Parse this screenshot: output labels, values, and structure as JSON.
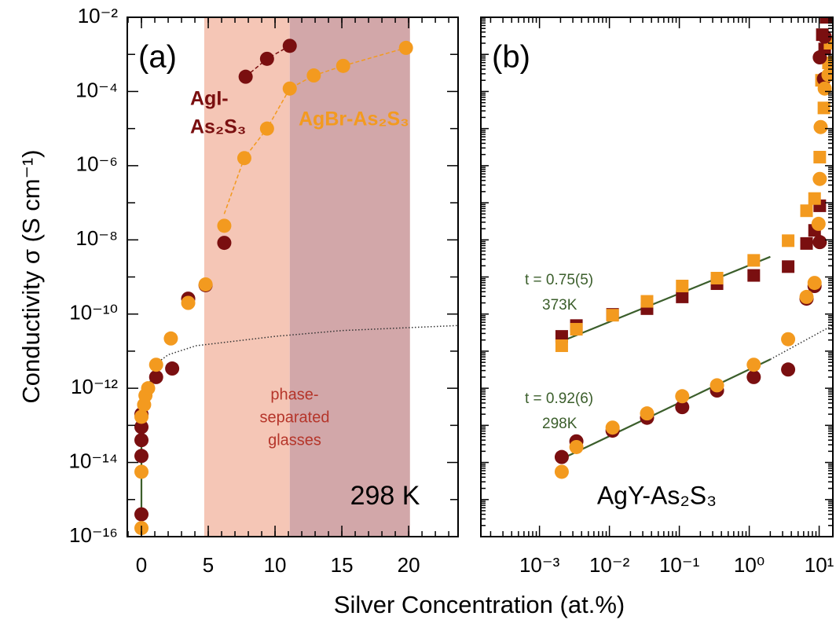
{
  "ylabel": "Conductivity σ (S cm⁻¹)",
  "xlabel": "Silver Concentration (at.%)",
  "chart_data": [
    {
      "type": "scatter",
      "xlim": [
        -1.06,
        23.7
      ],
      "ylim": [
        1e-16,
        0.01
      ],
      "ylog": true,
      "xlog": false,
      "xticks": [
        0,
        5,
        10,
        15,
        20
      ],
      "xminor_step": 1,
      "yticks": [
        {
          "value": 0.01,
          "label": "10⁻²"
        },
        {
          "value": 0.0001,
          "label": "10⁻⁴"
        },
        {
          "value": 1e-06,
          "label": "10⁻⁶"
        },
        {
          "value": 1e-08,
          "label": "10⁻⁸"
        },
        {
          "value": 1e-10,
          "label": "10⁻¹⁰"
        },
        {
          "value": 1e-12,
          "label": "10⁻¹²"
        },
        {
          "value": 1e-14,
          "label": "10⁻¹⁴"
        },
        {
          "value": 1e-16,
          "label": "10⁻¹⁶"
        }
      ],
      "yticks_unlabeled": [
        0.001,
        1e-05,
        1e-07,
        1e-09,
        1e-11,
        1e-13,
        1e-15
      ],
      "regions": [
        {
          "x0": 4.7,
          "x1": 11.1,
          "color": "#f5c6b6"
        },
        {
          "x0": 11.1,
          "x1": 20.1,
          "color": "#d2a7a9"
        }
      ],
      "series": [
        {
          "color": "#7a0f10",
          "marker": "circle",
          "x": [
            0,
            0,
            0,
            0,
            0,
            1.1,
            2.3,
            3.5,
            4.8,
            6.2,
            7.8,
            9.4,
            11.1
          ],
          "values": [
            4e-16,
            1.5e-14,
            4e-14,
            9e-14,
            2e-13,
            2e-12,
            3.4e-12,
            2.6e-10,
            6e-10,
            8.3e-09,
            0.00025,
            0.00076,
            0.0017
          ]
        },
        {
          "color": "#f39a1f",
          "marker": "circle",
          "x": [
            0,
            0,
            0,
            0.2,
            0.3,
            0.5,
            1.1,
            2.2,
            3.5,
            4.8,
            6.2,
            7.7,
            9.4,
            11.1,
            12.9,
            15.1,
            19.8
          ],
          "values": [
            1.7e-16,
            5.6e-15,
            1.7e-13,
            3.6e-13,
            6.4e-13,
            1e-12,
            4.3e-12,
            2.2e-11,
            2e-10,
            6.3e-10,
            2.4e-08,
            1.6e-06,
            1e-05,
            0.00012,
            0.00027,
            0.00049,
            0.0015
          ]
        },
        {
          "color": "#7a0f10",
          "line": "dashed",
          "x": [
            7.8,
            9.4,
            11.1
          ],
          "values": [
            0.00025,
            0.00076,
            0.0017
          ]
        },
        {
          "color": "#f39a1f",
          "line": "dashed",
          "x": [
            6.2,
            7.7,
            9.4,
            11.1,
            12.9,
            15.1,
            19.8
          ],
          "values": [
            5e-08,
            1.6e-06,
            1e-05,
            0.00012,
            0.00027,
            0.00049,
            0.0015
          ]
        },
        {
          "color": "#3b5e2b",
          "line": "solid",
          "x": [
            0,
            0,
            0.3,
            1.1
          ],
          "values": [
            6e-16,
            1e-13,
            1e-12,
            2.5e-12
          ]
        },
        {
          "color": "#333333",
          "line": "dotted",
          "x": [
            1.1,
            2,
            4.1,
            10,
            15,
            20,
            23.7
          ],
          "values": [
            4.6e-12,
            8e-12,
            1.4e-11,
            2.5e-11,
            3.6e-11,
            4.3e-11,
            4.9e-11
          ]
        }
      ],
      "annotations": [
        {
          "text": "(a)",
          "color": "#000000"
        },
        {
          "text": "AgI-",
          "color": "#7a0f10"
        },
        {
          "text": "As₂S₃",
          "color": "#7a0f10"
        },
        {
          "text": "AgBr-As₂S₃",
          "color": "#f39a1f"
        },
        {
          "text": "phase-",
          "color": "#b5352a"
        },
        {
          "text": "separated",
          "color": "#b5352a"
        },
        {
          "text": "glasses",
          "color": "#b5352a"
        },
        {
          "text": "298 K",
          "color": "#000000"
        }
      ]
    },
    {
      "type": "scatter",
      "xlim": [
        0.000145,
        15.7
      ],
      "ylim": [
        1e-16,
        0.01
      ],
      "ylog": true,
      "xlog": true,
      "xminor": true,
      "yminor": true,
      "xticks": [
        {
          "value": 0.001,
          "label": "10⁻³"
        },
        {
          "value": 0.01,
          "label": "10⁻²"
        },
        {
          "value": 0.1,
          "label": "10⁻¹"
        },
        {
          "value": 1,
          "label": "10⁰"
        },
        {
          "value": 10,
          "label": "10¹"
        }
      ],
      "yticks_unlabeled": [
        0.01,
        0.001,
        0.0001,
        1e-05,
        1e-06,
        1e-07,
        1e-08,
        1e-09,
        1e-10,
        1e-11,
        1e-12,
        1e-13,
        1e-14,
        1e-15,
        1e-16
      ],
      "series": [
        {
          "color": "#3b5e2b",
          "line": "solid",
          "x": [
            0.002,
            2
          ],
          "values": [
            1.8e-11,
            3.5e-09
          ]
        },
        {
          "color": "#3b5e2b",
          "line": "solid",
          "x": [
            0.002,
            2
          ],
          "values": [
            1.2e-14,
            6e-12
          ]
        },
        {
          "color": "#333333",
          "line": "dotted",
          "x": [
            2,
            15.7
          ],
          "values": [
            6e-12,
            5e-11
          ]
        },
        {
          "color": "#7a0f10",
          "marker": "square",
          "x": [
            0.00208,
            0.00337,
            0.0111,
            0.0345,
            0.11,
            0.346,
            1.16,
            3.6,
            6.6,
            8.6,
            10.2,
            12.0,
            11.1,
            12.6
          ],
          "values": [
            2.5e-11,
            4.9e-11,
            9.8e-11,
            1.4e-10,
            2.9e-10,
            6.6e-10,
            1.1e-09,
            1.9e-09,
            8e-09,
            1.8e-08,
            8.3e-08,
            0.0014,
            0.0034,
            0.01
          ]
        },
        {
          "color": "#f39a1f",
          "marker": "square",
          "x": [
            0.00208,
            0.00337,
            0.0111,
            0.0345,
            0.11,
            0.346,
            1.16,
            3.6,
            6.6,
            8.6,
            10.2,
            11.7,
            10.8,
            13.6,
            14.3
          ],
          "values": [
            1.4e-11,
            3.9e-11,
            9.3e-11,
            2.2e-10,
            5.7e-10,
            9.3e-10,
            2.8e-09,
            9.5e-09,
            6.1e-08,
            1.3e-07,
            1.7e-06,
            3.6e-05,
            0.0002,
            0.00059,
            0.002
          ]
        },
        {
          "color": "#7a0f10",
          "marker": "circle",
          "x": [
            0.00208,
            0.00337,
            0.0111,
            0.0345,
            0.11,
            0.346,
            1.16,
            3.6,
            6.6,
            8.6,
            10.2,
            11.7,
            10.2,
            12.0
          ],
          "values": [
            1.4e-14,
            3.7e-14,
            7.2e-14,
            1.6e-13,
            3.1e-13,
            8.7e-13,
            2e-12,
            3.2e-12,
            2.6e-10,
            5.7e-10,
            8.7e-09,
            0.00022,
            0.00083,
            0.003
          ]
        },
        {
          "color": "#f39a1f",
          "marker": "circle",
          "x": [
            0.00208,
            0.00337,
            0.0111,
            0.0345,
            0.11,
            0.346,
            1.16,
            3.6,
            6.6,
            8.6,
            9.8,
            10.2,
            10.5,
            12.0,
            13.6
          ],
          "values": [
            5.6e-15,
            2.6e-14,
            8.7e-14,
            2.1e-13,
            6.1e-13,
            1.2e-12,
            4.3e-12,
            2.1e-11,
            2.9e-10,
            6.9e-10,
            2.7e-08,
            4.4e-07,
            1.1e-05,
            0.00012,
            0.00028
          ]
        }
      ],
      "annotations": [
        {
          "text": "(b)",
          "color": "#000000"
        },
        {
          "text": "t = 0.75(5)",
          "color": "#3b5e2b"
        },
        {
          "text": "373K",
          "color": "#3b5e2b"
        },
        {
          "text": "t = 0.92(6)",
          "color": "#3b5e2b"
        },
        {
          "text": "298K",
          "color": "#3b5e2b"
        },
        {
          "text": "AgY-As₂S₃",
          "color": "#000000"
        }
      ]
    }
  ]
}
